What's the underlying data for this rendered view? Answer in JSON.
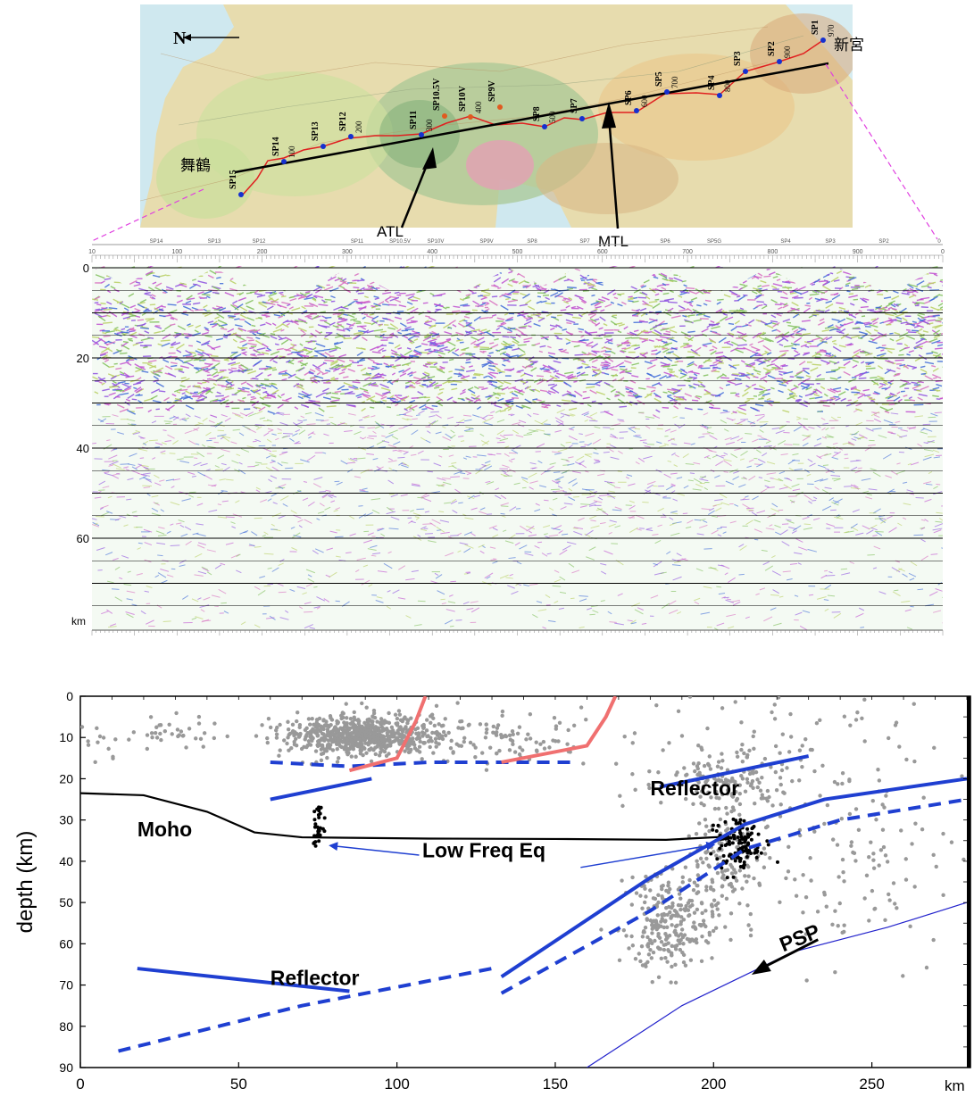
{
  "map": {
    "north_label": "N",
    "place_maizuru": "舞鶴",
    "place_shingu": "新宮",
    "fault_atl": "ATL",
    "fault_mtl": "MTL",
    "shotpoints": [
      {
        "name": "SP15",
        "offset": ""
      },
      {
        "name": "SP14",
        "offset": "100"
      },
      {
        "name": "SP13",
        "offset": ""
      },
      {
        "name": "SP12",
        "offset": "200"
      },
      {
        "name": "SP11",
        "offset": "300"
      },
      {
        "name": "SP10.5V",
        "offset": ""
      },
      {
        "name": "SP10V",
        "offset": "400"
      },
      {
        "name": "SP9V",
        "offset": ""
      },
      {
        "name": "SP8",
        "offset": "500"
      },
      {
        "name": "SP7",
        "offset": ""
      },
      {
        "name": "SP6",
        "offset": "600"
      },
      {
        "name": "SP5",
        "offset": "700"
      },
      {
        "name": "SP4",
        "offset": "800"
      },
      {
        "name": "SP3",
        "offset": ""
      },
      {
        "name": "SP2",
        "offset": "900"
      },
      {
        "name": "SP1",
        "offset": "970"
      }
    ]
  },
  "section": {
    "sp_ticks": [
      "SP14",
      "SP13",
      "SP12",
      "SP11",
      "SP10.5V",
      "SP10V",
      "SP9V",
      "SP8",
      "SP7",
      "SP6",
      "SP5G",
      "SP4",
      "SP3",
      "SP2",
      "0"
    ],
    "dist_ticks": [
      {
        "label": "10",
        "v": 0
      },
      {
        "label": "100",
        "v": 100
      },
      {
        "label": "200",
        "v": 200
      },
      {
        "label": "300",
        "v": 300
      },
      {
        "label": "400",
        "v": 400
      },
      {
        "label": "500",
        "v": 500
      },
      {
        "label": "600",
        "v": 600
      },
      {
        "label": "700",
        "v": 700
      },
      {
        "label": "800",
        "v": 800
      },
      {
        "label": "900",
        "v": 900
      },
      {
        "label": "0",
        "v": 1000
      }
    ],
    "depth_ticks": [
      {
        "label": "0",
        "v": 0
      },
      {
        "label": "20",
        "v": 20
      },
      {
        "label": "40",
        "v": 40
      },
      {
        "label": "60",
        "v": 60
      }
    ],
    "depth_unit": "km"
  },
  "chart_data": {
    "type": "scatter",
    "ylabel": "depth (km)",
    "xlabel": "km",
    "xlim": [
      0,
      280
    ],
    "ylim": [
      90,
      0
    ],
    "x_ticks": [
      0,
      50,
      100,
      150,
      200,
      250
    ],
    "y_ticks": [
      0,
      10,
      20,
      30,
      40,
      50,
      60,
      70,
      80,
      90
    ],
    "annotations": [
      {
        "text": "Moho",
        "x": 18,
        "y": 34
      },
      {
        "text": "Reflector",
        "x": 180,
        "y": 24
      },
      {
        "text": "Low Freq Eq",
        "x": 108,
        "y": 39
      },
      {
        "text": "Reflector",
        "x": 60,
        "y": 70
      },
      {
        "text": "PSP",
        "x": 222,
        "y": 62
      }
    ],
    "lines": [
      {
        "name": "Moho",
        "color": "#000000",
        "style": "solid",
        "points": [
          [
            0,
            23.5
          ],
          [
            20,
            24
          ],
          [
            40,
            28
          ],
          [
            55,
            33
          ],
          [
            70,
            34.2
          ],
          [
            110,
            34.5
          ],
          [
            150,
            34.6
          ],
          [
            185,
            34.8
          ],
          [
            205,
            34
          ]
        ]
      },
      {
        "color": "#1f3fd1",
        "style": "dashed",
        "points": [
          [
            60,
            16
          ],
          [
            85,
            17
          ],
          [
            110,
            16
          ],
          [
            155,
            16
          ]
        ]
      },
      {
        "color": "#1f3fd1",
        "style": "solid",
        "points": [
          [
            60,
            25
          ],
          [
            92,
            20
          ]
        ]
      },
      {
        "color": "#1f3fd1",
        "style": "solid",
        "points": [
          [
            183,
            22
          ],
          [
            230,
            14.5
          ]
        ]
      },
      {
        "color": "#1f3fd1",
        "style": "solid",
        "points": [
          [
            133,
            68
          ],
          [
            180,
            44
          ],
          [
            210,
            31
          ],
          [
            235,
            25
          ],
          [
            280,
            20
          ]
        ]
      },
      {
        "color": "#1f3fd1",
        "style": "dashed",
        "points": [
          [
            133,
            72
          ],
          [
            180,
            52
          ],
          [
            210,
            37
          ],
          [
            240,
            30
          ],
          [
            280,
            25
          ]
        ]
      },
      {
        "color": "#1f3fd1",
        "style": "solid",
        "points": [
          [
            18,
            66
          ],
          [
            85,
            71.5
          ]
        ]
      },
      {
        "color": "#1f3fd1",
        "style": "dashed",
        "points": [
          [
            12,
            86
          ],
          [
            70,
            75
          ],
          [
            130,
            66
          ]
        ]
      },
      {
        "color": "#2222cc",
        "style": "thin",
        "points": [
          [
            160,
            90
          ],
          [
            190,
            75
          ],
          [
            225,
            62
          ],
          [
            255,
            56
          ],
          [
            280,
            50
          ]
        ]
      },
      {
        "color": "#f07070",
        "style": "solid",
        "points": [
          [
            85,
            18
          ],
          [
            100,
            15
          ],
          [
            106,
            6
          ],
          [
            109,
            0
          ]
        ]
      },
      {
        "color": "#f07070",
        "style": "solid",
        "points": [
          [
            133,
            16
          ],
          [
            160,
            12
          ],
          [
            166,
            5
          ],
          [
            169,
            0
          ]
        ]
      }
    ],
    "point_clusters": [
      {
        "color": "#999999",
        "cx": 88,
        "cy": 9.5,
        "sx": 12,
        "sy": 2.3,
        "n": 700
      },
      {
        "color": "#999999",
        "cx": 131,
        "cy": 10,
        "sx": 15,
        "sy": 3,
        "n": 110
      },
      {
        "color": "#999999",
        "cx": 30,
        "cy": 9,
        "sx": 8,
        "sy": 2,
        "n": 35
      },
      {
        "color": "#999999",
        "cx": 5,
        "cy": 11,
        "sx": 4,
        "sy": 2,
        "n": 12
      },
      {
        "color": "#999999",
        "cx": 205,
        "cy": 20,
        "sx": 10,
        "sy": 3.5,
        "n": 140
      },
      {
        "color": "#999999",
        "cx": 186,
        "cy": 55,
        "sx": 7,
        "sy": 6,
        "n": 240
      },
      {
        "color": "#999999",
        "cx": 203,
        "cy": 41,
        "sx": 6,
        "sy": 7,
        "n": 120
      },
      {
        "color": "#999999",
        "cx": 240,
        "cy": 38,
        "sx": 22,
        "sy": 12,
        "n": 140
      },
      {
        "color": "#999999",
        "cx": 215,
        "cy": 10,
        "sx": 40,
        "sy": 6,
        "n": 70
      },
      {
        "color": "#000000",
        "cx": 75,
        "cy": 33,
        "sx": 0.8,
        "sy": 3,
        "n": 30
      },
      {
        "color": "#000000",
        "cx": 207,
        "cy": 36,
        "sx": 4,
        "sy": 3.5,
        "n": 120
      }
    ]
  }
}
